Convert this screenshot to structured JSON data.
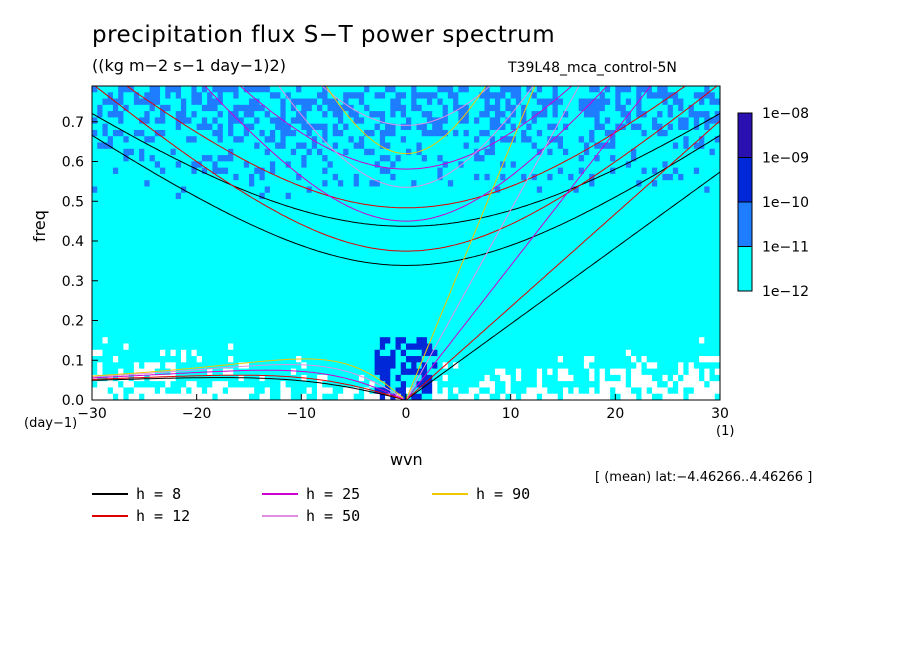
{
  "title": "precipitation flux S−T power spectrum",
  "subtitle": "((kg m−2 s−1 day−1)2)",
  "run_label": "T39L48_mca_control-5N",
  "mean_note": "[ (mean) lat:−4.46266..4.46266 ]",
  "colors": {
    "shade_1e12": "#00ffff",
    "shade_1e11": "#1e7cff",
    "shade_1e10": "#0028d8",
    "shade_1e09": "#2a10b0",
    "shade_1e08": "#4a0aa0",
    "h8": "#000000",
    "h12": "#e00000",
    "h25": "#d000d0",
    "h50": "#e090e0",
    "h90": "#f0c800"
  },
  "chart_data": {
    "type": "heatmap",
    "xlabel": "wvn",
    "ylabel": "freq",
    "x_unit": "(1)",
    "y_unit": "(day−1)",
    "xlim": [
      -30,
      30
    ],
    "ylim": [
      0,
      0.79
    ],
    "x_ticks": [
      -30,
      -20,
      -10,
      0,
      10,
      20,
      30
    ],
    "x_tick_labels": [
      "−30",
      "−20",
      "−10",
      "0",
      "10",
      "20",
      "30"
    ],
    "y_ticks": [
      0,
      0.1,
      0.2,
      0.3,
      0.4,
      0.5,
      0.6,
      0.7
    ],
    "y_tick_labels": [
      "0.0",
      "0.1",
      "0.2",
      "0.3",
      "0.4",
      "0.5",
      "0.6",
      "0.7"
    ],
    "colorbar": {
      "levels": [
        "1e−12",
        "1e−11",
        "1e−10",
        "1e−09",
        "1e−08"
      ],
      "colors": [
        "#00ffff",
        "#1e7cff",
        "#0028d8",
        "#2a10b0",
        "#4a0aa0"
      ]
    },
    "dispersion_curves": [
      {
        "name": "h =  8",
        "h": 8,
        "color": "#000000"
      },
      {
        "name": "h = 12",
        "h": 12,
        "color": "#e00000"
      },
      {
        "name": "h = 25",
        "h": 25,
        "color": "#d000d0"
      },
      {
        "name": "h = 50",
        "h": 50,
        "color": "#e090e0"
      },
      {
        "name": "h = 90",
        "h": 90,
        "color": "#f0c800"
      }
    ]
  }
}
